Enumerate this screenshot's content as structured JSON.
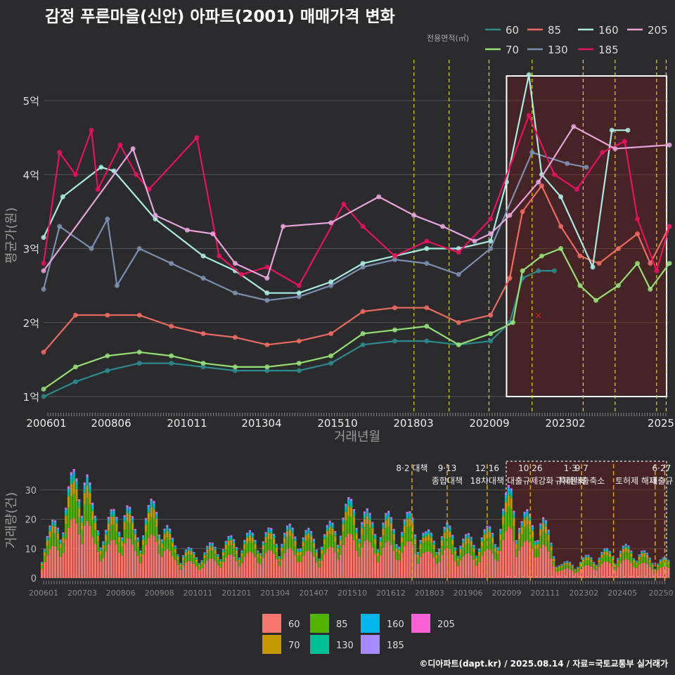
{
  "title": "감정 푸른마을(신안) 아파트(2001) 매매가격 변화",
  "legend_title": "전용면적(㎡)",
  "credit": "©디아파트(dapt.kr) / 2025.08.14 / 자료=국토교통부 실거래가",
  "colors": {
    "line": {
      "60": "#2a8a8f",
      "70": "#93e074",
      "85": "#ef6a5f",
      "130": "#7b8fb3",
      "160": "#a8ece3",
      "185": "#e8115e",
      "205": "#e6a3de"
    },
    "bar": {
      "60": "#f8766d",
      "70": "#c49a00",
      "85": "#53b400",
      "130": "#00c094",
      "160": "#00b6eb",
      "185": "#a58aff",
      "205": "#fb61d7"
    }
  },
  "chart_data": [
    {
      "type": "line",
      "xlabel": "거래년월",
      "ylabel": "평균가(원)",
      "x_ticks": [
        "200601",
        "200806",
        "201011",
        "201304",
        "201510",
        "201803",
        "202009",
        "202302",
        "2025"
      ],
      "y_ticks": [
        "1억",
        "2억",
        "3억",
        "4억",
        "5억"
      ],
      "y_tick_values": [
        1,
        2,
        3,
        4,
        5
      ],
      "ylim": [
        0.8,
        5.6
      ],
      "xlim": [
        2006.0,
        2025.6
      ],
      "grid": true,
      "legend_position": "top-right",
      "series": [
        {
          "name": "60",
          "points": [
            [
              2006.0,
              1.0
            ],
            [
              2007.0,
              1.2
            ],
            [
              2008.0,
              1.35
            ],
            [
              2009.0,
              1.45
            ],
            [
              2010.0,
              1.45
            ],
            [
              2011.0,
              1.4
            ],
            [
              2012.0,
              1.35
            ],
            [
              2013.0,
              1.35
            ],
            [
              2014.0,
              1.35
            ],
            [
              2015.0,
              1.45
            ],
            [
              2016.0,
              1.7
            ],
            [
              2017.0,
              1.75
            ],
            [
              2018.0,
              1.75
            ],
            [
              2019.0,
              1.7
            ],
            [
              2020.0,
              1.75
            ],
            [
              2020.6,
              2.0
            ],
            [
              2021.0,
              2.6
            ],
            [
              2021.5,
              2.7
            ],
            [
              2022.0,
              2.7
            ]
          ]
        },
        {
          "name": "70",
          "points": [
            [
              2006.0,
              1.1
            ],
            [
              2007.0,
              1.4
            ],
            [
              2008.0,
              1.55
            ],
            [
              2009.0,
              1.6
            ],
            [
              2010.0,
              1.55
            ],
            [
              2011.0,
              1.45
            ],
            [
              2012.0,
              1.4
            ],
            [
              2013.0,
              1.4
            ],
            [
              2014.0,
              1.45
            ],
            [
              2015.0,
              1.55
            ],
            [
              2016.0,
              1.85
            ],
            [
              2017.0,
              1.9
            ],
            [
              2018.0,
              1.95
            ],
            [
              2019.0,
              1.7
            ],
            [
              2020.0,
              1.85
            ],
            [
              2020.7,
              2.0
            ],
            [
              2021.0,
              2.7
            ],
            [
              2021.6,
              2.9
            ],
            [
              2022.2,
              3.0
            ],
            [
              2022.8,
              2.5
            ],
            [
              2023.3,
              2.3
            ],
            [
              2024.0,
              2.5
            ],
            [
              2024.6,
              2.8
            ],
            [
              2025.0,
              2.45
            ],
            [
              2025.6,
              2.8
            ]
          ]
        },
        {
          "name": "85",
          "points": [
            [
              2006.0,
              1.6
            ],
            [
              2007.0,
              2.1
            ],
            [
              2008.0,
              2.1
            ],
            [
              2009.0,
              2.1
            ],
            [
              2010.0,
              1.95
            ],
            [
              2011.0,
              1.85
            ],
            [
              2012.0,
              1.8
            ],
            [
              2013.0,
              1.7
            ],
            [
              2014.0,
              1.75
            ],
            [
              2015.0,
              1.85
            ],
            [
              2016.0,
              2.15
            ],
            [
              2017.0,
              2.2
            ],
            [
              2018.0,
              2.2
            ],
            [
              2019.0,
              2.0
            ],
            [
              2020.0,
              2.1
            ],
            [
              2020.6,
              2.6
            ],
            [
              2021.0,
              3.5
            ],
            [
              2021.6,
              3.85
            ],
            [
              2022.2,
              3.3
            ],
            [
              2022.8,
              2.9
            ],
            [
              2023.4,
              2.8
            ],
            [
              2024.0,
              3.0
            ],
            [
              2024.6,
              3.2
            ],
            [
              2025.0,
              2.8
            ],
            [
              2025.6,
              3.3
            ]
          ]
        },
        {
          "name": "130",
          "points": [
            [
              2006.0,
              2.45
            ],
            [
              2006.5,
              3.3
            ],
            [
              2007.5,
              3.0
            ],
            [
              2008.0,
              3.4
            ],
            [
              2008.3,
              2.5
            ],
            [
              2009.0,
              3.0
            ],
            [
              2010.0,
              2.8
            ],
            [
              2011.0,
              2.6
            ],
            [
              2012.0,
              2.4
            ],
            [
              2013.0,
              2.3
            ],
            [
              2014.0,
              2.35
            ],
            [
              2015.0,
              2.5
            ],
            [
              2016.0,
              2.75
            ],
            [
              2017.0,
              2.85
            ],
            [
              2018.0,
              2.8
            ],
            [
              2019.0,
              2.65
            ],
            [
              2020.0,
              3.0
            ],
            [
              2021.3,
              4.3
            ],
            [
              2022.4,
              4.15
            ],
            [
              2023.0,
              4.1
            ]
          ]
        },
        {
          "name": "160",
          "points": [
            [
              2006.0,
              3.15
            ],
            [
              2006.6,
              3.7
            ],
            [
              2007.8,
              4.1
            ],
            [
              2008.2,
              4.05
            ],
            [
              2009.5,
              3.4
            ],
            [
              2011.0,
              2.9
            ],
            [
              2012.0,
              2.7
            ],
            [
              2013.0,
              2.4
            ],
            [
              2014.0,
              2.4
            ],
            [
              2015.0,
              2.55
            ],
            [
              2016.0,
              2.8
            ],
            [
              2017.0,
              2.9
            ],
            [
              2018.0,
              3.0
            ],
            [
              2019.0,
              3.0
            ],
            [
              2020.0,
              3.1
            ],
            [
              2020.5,
              3.9
            ],
            [
              2021.2,
              5.35
            ],
            [
              2021.6,
              4.0
            ],
            [
              2022.2,
              3.7
            ],
            [
              2023.2,
              2.75
            ],
            [
              2023.8,
              4.6
            ],
            [
              2024.3,
              4.6
            ]
          ]
        },
        {
          "name": "185",
          "points": [
            [
              2006.0,
              2.8
            ],
            [
              2006.5,
              4.3
            ],
            [
              2007.0,
              4.0
            ],
            [
              2007.5,
              4.6
            ],
            [
              2007.7,
              3.8
            ],
            [
              2008.4,
              4.4
            ],
            [
              2008.9,
              4.0
            ],
            [
              2009.3,
              3.8
            ],
            [
              2010.8,
              4.5
            ],
            [
              2011.5,
              2.9
            ],
            [
              2012.2,
              2.65
            ],
            [
              2013.0,
              2.75
            ],
            [
              2014.0,
              2.5
            ],
            [
              2015.4,
              3.6
            ],
            [
              2016.0,
              3.3
            ],
            [
              2017.0,
              2.9
            ],
            [
              2018.0,
              3.1
            ],
            [
              2019.0,
              2.95
            ],
            [
              2020.0,
              3.4
            ],
            [
              2021.2,
              4.8
            ],
            [
              2022.0,
              4.0
            ],
            [
              2022.7,
              3.8
            ],
            [
              2023.5,
              4.3
            ],
            [
              2024.2,
              4.45
            ],
            [
              2024.6,
              3.4
            ],
            [
              2025.2,
              2.7
            ],
            [
              2025.6,
              3.3
            ]
          ]
        },
        {
          "name": "205",
          "points": [
            [
              2006.0,
              2.7
            ],
            [
              2008.8,
              4.35
            ],
            [
              2009.5,
              3.45
            ],
            [
              2010.5,
              3.25
            ],
            [
              2011.3,
              3.2
            ],
            [
              2012.0,
              2.8
            ],
            [
              2013.0,
              2.6
            ],
            [
              2013.5,
              3.3
            ],
            [
              2015.0,
              3.35
            ],
            [
              2016.5,
              3.7
            ],
            [
              2017.6,
              3.45
            ],
            [
              2018.5,
              3.3
            ],
            [
              2019.5,
              3.1
            ],
            [
              2020.0,
              3.2
            ],
            [
              2020.6,
              3.45
            ],
            [
              2021.5,
              3.9
            ],
            [
              2022.6,
              4.65
            ],
            [
              2023.9,
              4.35
            ],
            [
              2025.6,
              4.4
            ]
          ]
        }
      ],
      "policy_lines": [
        2017.6,
        2018.7,
        2019.95,
        2021.3,
        2022.9,
        2023.9,
        2025.2,
        2025.5
      ],
      "highlight": {
        "from": 2020.5,
        "to": 2025.6
      },
      "annotation": {
        "mark": "×",
        "x": 2021.5,
        "y": 2.1
      }
    },
    {
      "type": "bar",
      "ylabel": "거래량(건)",
      "y_ticks": [
        "0",
        "10",
        "20",
        "30"
      ],
      "y_tick_values": [
        0,
        10,
        20,
        30
      ],
      "ylim": [
        0,
        40
      ],
      "x_ticks": [
        "200601",
        "200703",
        "200806",
        "200908",
        "201011",
        "201201",
        "201304",
        "201407",
        "201510",
        "201612",
        "201803",
        "201906",
        "202009",
        "202111",
        "202302",
        "202405",
        "20250"
      ],
      "stack_order": [
        "60",
        "85",
        "70",
        "130",
        "160",
        "185",
        "205"
      ],
      "peaks": [
        [
          2006.0,
          10
        ],
        [
          2006.5,
          17
        ],
        [
          2007.2,
          33
        ],
        [
          2007.3,
          37
        ],
        [
          2007.6,
          18
        ],
        [
          2008.0,
          15
        ],
        [
          2008.3,
          19
        ],
        [
          2008.6,
          22
        ],
        [
          2008.9,
          14
        ],
        [
          2009.6,
          22
        ],
        [
          2010.1,
          10
        ],
        [
          2010.8,
          7
        ],
        [
          2011.5,
          10
        ],
        [
          2012.5,
          12
        ],
        [
          2013.3,
          13
        ],
        [
          2014.0,
          14
        ],
        [
          2014.7,
          11
        ],
        [
          2015.3,
          18
        ],
        [
          2015.8,
          22
        ],
        [
          2016.3,
          16
        ],
        [
          2016.8,
          17
        ],
        [
          2017.2,
          15
        ],
        [
          2017.6,
          18
        ],
        [
          2018.0,
          12
        ],
        [
          2018.7,
          14
        ],
        [
          2019.2,
          11
        ],
        [
          2019.9,
          13
        ],
        [
          2020.3,
          16
        ],
        [
          2020.7,
          27
        ],
        [
          2021.0,
          17
        ],
        [
          2021.6,
          18
        ],
        [
          2022.2,
          4
        ],
        [
          2022.8,
          5
        ],
        [
          2023.3,
          7
        ],
        [
          2023.9,
          8
        ],
        [
          2024.5,
          9
        ],
        [
          2025.0,
          6
        ],
        [
          2025.6,
          5
        ]
      ],
      "policy_lines": [
        2017.6,
        2018.7,
        2019.95,
        2021.3,
        2022.9,
        2023.9,
        2025.2,
        2025.5
      ],
      "highlight": {
        "from": 2020.5,
        "to": 2025.6
      },
      "annotations": [
        {
          "x": 2017.6,
          "line1": "8·2 대책",
          "line2": ""
        },
        {
          "x": 2018.7,
          "line1": "9·13",
          "line2": "종합대책"
        },
        {
          "x": 2019.95,
          "line1": "12·16",
          "line2": "18차대책"
        },
        {
          "x": 2021.3,
          "line1": "10·26",
          "line2": "대출규제강화"
        },
        {
          "x": 2022.55,
          "line1": "1·3",
          "line2": "규제완화"
        },
        {
          "x": 2022.9,
          "line1": "9·7",
          "line2": "특례대출축소"
        },
        {
          "x": 2024.6,
          "line1": "",
          "line2": "토허제 해제"
        },
        {
          "x": 2025.4,
          "line1": "6·27",
          "line2": "대출규"
        }
      ]
    }
  ]
}
